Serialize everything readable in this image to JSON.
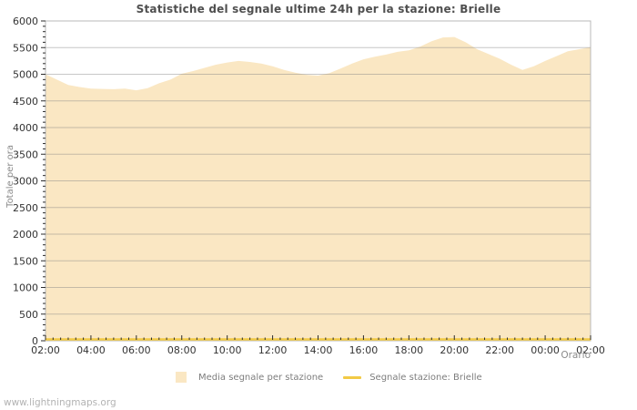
{
  "title": "Statistiche del segnale ultime 24h per la stazione: Brielle",
  "watermark": "www.lightningmaps.org",
  "axes": {
    "x_title": "Orario",
    "y_title": "Totale per ora"
  },
  "legend": {
    "items": [
      {
        "swatch": "area",
        "label": "Media segnale per stazione",
        "color": "#FAE7C3"
      },
      {
        "swatch": "line",
        "label": "Segnale stazione: Brielle",
        "color": "#F2CA45"
      }
    ]
  },
  "colors": {
    "area_fill": "#FAE7C3",
    "station_line": "#F2CA45",
    "gridline": "rgba(130,130,130,0.45)",
    "plot_border": "#b8b8b8",
    "tick": "#2b2b2b",
    "tick_label": "#333333",
    "title_text": "#4f4f4f",
    "muted_text": "#8a8a8a",
    "watermark_text": "#b3b3b3"
  },
  "chart_data": {
    "type": "area",
    "title": "Statistiche del segnale ultime 24h per la stazione: Brielle",
    "xlabel": "Orario",
    "ylabel": "Totale per ora",
    "ylim": [
      0,
      6000
    ],
    "y_tick_step": 500,
    "y_minor_tick_step": 100,
    "x_tick_labels": [
      "02:00",
      "04:00",
      "06:00",
      "08:00",
      "10:00",
      "12:00",
      "14:00",
      "16:00",
      "18:00",
      "20:00",
      "22:00",
      "00:00",
      "02:00"
    ],
    "x_minor_divisions": 6,
    "grid": true,
    "legend_position": "bottom",
    "series": [
      {
        "name": "Media segnale per stazione",
        "type": "area",
        "color": "#FAE7C3",
        "x_start": "02:00",
        "x_step_minutes": 30,
        "values": [
          5000,
          4900,
          4800,
          4760,
          4730,
          4725,
          4720,
          4730,
          4700,
          4740,
          4830,
          4900,
          5010,
          5060,
          5120,
          5180,
          5220,
          5250,
          5230,
          5200,
          5150,
          5080,
          5030,
          4990,
          4975,
          5020,
          5110,
          5200,
          5280,
          5330,
          5370,
          5420,
          5450,
          5520,
          5620,
          5690,
          5700,
          5600,
          5470,
          5380,
          5290,
          5180,
          5080,
          5150,
          5250,
          5340,
          5430,
          5470,
          5510
        ]
      },
      {
        "name": "Segnale stazione: Brielle",
        "type": "line",
        "color": "#F2CA45",
        "constant_value": 0
      }
    ]
  }
}
